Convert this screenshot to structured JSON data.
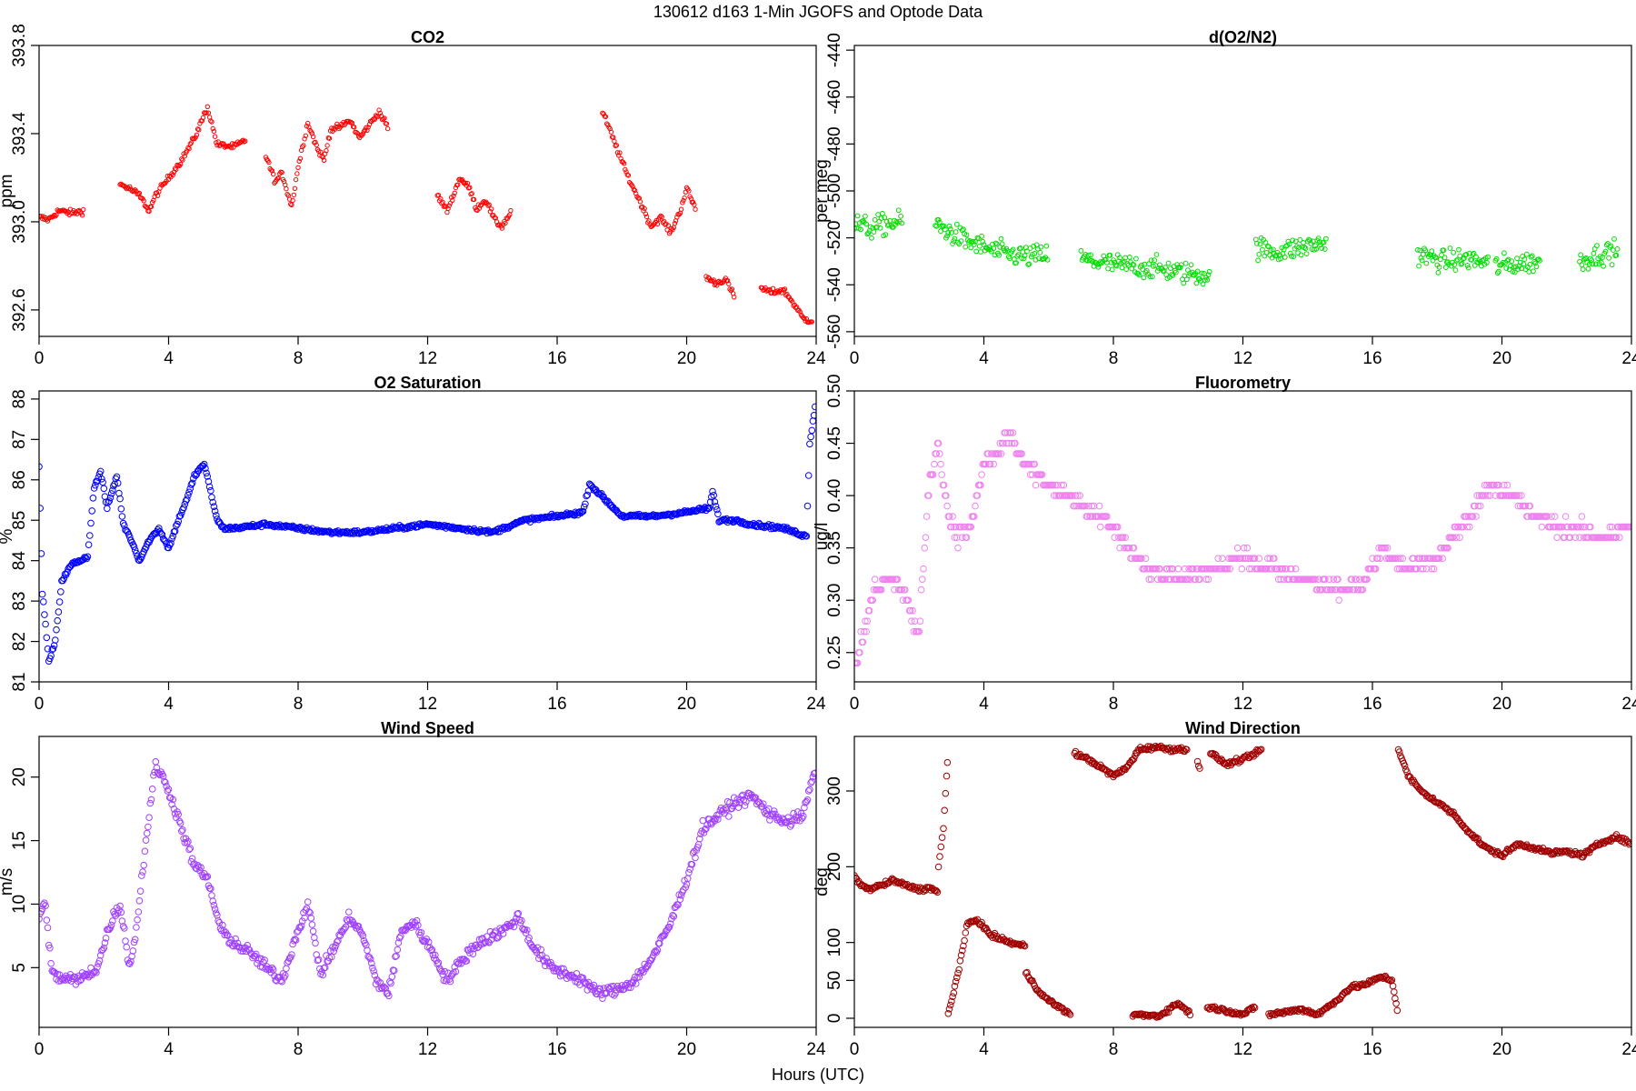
{
  "figure": {
    "suptitle": "130612   d163   1-Min  JGOFS and Optode Data",
    "xlabel": "Hours (UTC)"
  },
  "chart_data": [
    {
      "id": "co2",
      "type": "scatter",
      "title": "CO2",
      "ylabel": "ppm",
      "color": "#ff0000",
      "xlim": [
        0,
        24
      ],
      "ylim": [
        392.48,
        393.8
      ],
      "xticks": [
        0,
        4,
        8,
        12,
        16,
        20,
        24
      ],
      "yticks": [
        392.6,
        393.0,
        393.4,
        393.8
      ],
      "ytick_labels": [
        "392.6",
        "393.0",
        "393.4",
        "393.8"
      ],
      "ytick_rotate": true,
      "marker_size": 2.2,
      "noise": 0.015,
      "segments": [
        {
          "x": [
            0.0,
            0.3,
            0.6,
            1.0,
            1.4
          ],
          "y": [
            393.02,
            393.01,
            393.05,
            393.04,
            393.05
          ]
        },
        {
          "x": [
            2.5,
            2.8,
            3.1,
            3.4,
            3.6,
            4.0,
            4.4,
            4.8,
            5.0,
            5.2,
            5.5,
            6.0,
            6.4
          ],
          "y": [
            393.17,
            393.15,
            393.12,
            393.05,
            393.12,
            393.2,
            393.28,
            393.38,
            393.45,
            393.52,
            393.35,
            393.34,
            393.37
          ]
        },
        {
          "x": [
            7.0,
            7.3,
            7.5,
            7.8,
            8.0,
            8.3,
            8.6,
            8.8,
            9.0,
            9.3,
            9.6,
            9.9,
            10.1,
            10.5,
            10.8
          ],
          "y": [
            393.3,
            393.18,
            393.22,
            393.07,
            393.25,
            393.45,
            393.33,
            393.28,
            393.42,
            393.43,
            393.46,
            393.38,
            393.42,
            393.5,
            393.42
          ]
        },
        {
          "x": [
            12.3,
            12.6,
            13.0,
            13.3,
            13.5,
            13.8,
            14.1,
            14.3,
            14.6
          ],
          "y": [
            393.12,
            393.05,
            393.2,
            393.15,
            393.06,
            393.1,
            393.0,
            392.98,
            393.05
          ]
        },
        {
          "x": [
            17.4,
            17.8,
            18.2,
            18.6,
            18.9,
            19.2,
            19.5,
            19.8,
            20.0,
            20.3
          ],
          "y": [
            393.5,
            393.35,
            393.2,
            393.08,
            392.98,
            393.02,
            392.95,
            393.05,
            393.15,
            393.05
          ]
        },
        {
          "x": [
            20.6,
            20.9,
            21.2,
            21.5
          ],
          "y": [
            392.75,
            392.72,
            392.74,
            392.65
          ]
        },
        {
          "x": [
            22.3,
            22.6,
            23.0,
            23.3,
            23.6,
            23.9
          ],
          "y": [
            392.7,
            392.68,
            392.69,
            392.63,
            392.56,
            392.55
          ]
        }
      ]
    },
    {
      "id": "o2n2",
      "type": "scatter",
      "title": "d(O2/N2)",
      "ylabel": "per meg",
      "color": "#00dd00",
      "xlim": [
        0,
        24
      ],
      "ylim": [
        -562,
        -438
      ],
      "xticks": [
        0,
        4,
        8,
        12,
        16,
        20,
        24
      ],
      "yticks": [
        -560,
        -540,
        -520,
        -500,
        -480,
        -460,
        -440
      ],
      "ytick_labels": [
        "-560",
        "-540",
        "-520",
        "-500",
        "-480",
        "-460",
        "-440"
      ],
      "ytick_rotate": true,
      "marker_size": 2.4,
      "noise": 5,
      "segments": [
        {
          "x": [
            0.0,
            0.5,
            1.0,
            1.5
          ],
          "y": [
            -514,
            -516,
            -514,
            -513
          ]
        },
        {
          "x": [
            2.5,
            3.0,
            3.6,
            4.2,
            4.8,
            5.4,
            6.0
          ],
          "y": [
            -514,
            -518,
            -522,
            -525,
            -527,
            -528,
            -527
          ]
        },
        {
          "x": [
            7.0,
            7.8,
            8.6,
            9.4,
            10.2,
            11.0
          ],
          "y": [
            -529,
            -531,
            -532,
            -533,
            -535,
            -536
          ]
        },
        {
          "x": [
            12.4,
            13.0,
            13.8,
            14.6
          ],
          "y": [
            -524,
            -526,
            -524,
            -522
          ]
        },
        {
          "x": [
            17.4,
            18.2,
            19.0,
            19.6
          ],
          "y": [
            -527,
            -530,
            -529,
            -531
          ]
        },
        {
          "x": [
            19.8,
            20.5,
            21.2
          ],
          "y": [
            -532,
            -531,
            -530
          ]
        },
        {
          "x": [
            22.4,
            23.0,
            23.6
          ],
          "y": [
            -530,
            -527,
            -525
          ]
        }
      ]
    },
    {
      "id": "o2sat",
      "type": "scatter",
      "title": "O2 Saturation",
      "ylabel": "%",
      "color": "#0000ff",
      "xlim": [
        0,
        24
      ],
      "ylim": [
        81.0,
        88.2
      ],
      "xticks": [
        0,
        4,
        8,
        12,
        16,
        20,
        24
      ],
      "yticks": [
        81,
        82,
        83,
        84,
        85,
        86,
        87,
        88
      ],
      "ytick_labels": [
        "81",
        "82",
        "83",
        "84",
        "85",
        "86",
        "87",
        "88"
      ],
      "ytick_rotate": true,
      "marker_size": 3.3,
      "noise": 0.05,
      "segments": [
        {
          "x": [
            0.0,
            0.1,
            0.2,
            0.3,
            0.5,
            0.7,
            1.0,
            1.5,
            1.7,
            1.9,
            2.1,
            2.4,
            2.6,
            2.8,
            3.1,
            3.4,
            3.7,
            4.0,
            4.3,
            4.6,
            4.8,
            5.1,
            5.5,
            5.7,
            6.0,
            7.0,
            8.0,
            9.0,
            10.0,
            11.0,
            12.0,
            13.0,
            14.0,
            15.0,
            16.0,
            16.8,
            17.0,
            18.0,
            19.0,
            20.0,
            20.7,
            20.8,
            21.0,
            21.5,
            22.0,
            23.0,
            23.7,
            23.8,
            24.0
          ],
          "y": [
            86.3,
            83.2,
            82.4,
            81.5,
            82.0,
            83.5,
            83.9,
            84.1,
            85.8,
            86.2,
            85.3,
            86.1,
            84.9,
            84.6,
            84.0,
            84.5,
            84.8,
            84.3,
            85.0,
            85.6,
            86.1,
            86.4,
            85.0,
            84.8,
            84.8,
            84.9,
            84.8,
            84.7,
            84.7,
            84.8,
            84.9,
            84.8,
            84.7,
            85.0,
            85.1,
            85.2,
            85.9,
            85.1,
            85.1,
            85.2,
            85.3,
            85.7,
            85.0,
            85.0,
            84.9,
            84.8,
            84.6,
            86.9,
            88.0
          ]
        }
      ]
    },
    {
      "id": "fluor",
      "type": "scatter",
      "title": "Fluorometry",
      "ylabel": "ug/l",
      "color": "#ee82ee",
      "xlim": [
        0,
        24
      ],
      "ylim": [
        0.222,
        0.5
      ],
      "xticks": [
        0,
        4,
        8,
        12,
        16,
        20,
        24
      ],
      "yticks": [
        0.25,
        0.3,
        0.35,
        0.4,
        0.45,
        0.5
      ],
      "ytick_labels": [
        "0.25",
        "0.30",
        "0.35",
        "0.40",
        "0.45",
        "0.50"
      ],
      "ytick_rotate": true,
      "marker_size": 3.3,
      "noise": 0.008,
      "quantize": 0.01,
      "segments": [
        {
          "x": [
            0.0,
            0.3,
            0.6,
            1.0,
            1.5,
            1.8,
            2.0,
            2.3,
            2.6,
            2.9,
            3.2,
            3.6,
            4.0,
            4.4,
            4.8,
            5.2,
            6.0,
            7.0,
            8.0,
            9.0,
            10.0,
            11.0,
            12.0,
            13.0,
            14.0,
            15.0,
            15.8,
            16.3,
            17.0,
            18.0,
            19.0,
            19.6,
            20.3,
            21.0,
            22.0,
            23.0,
            24.0
          ],
          "y": [
            0.24,
            0.27,
            0.31,
            0.32,
            0.31,
            0.28,
            0.27,
            0.41,
            0.45,
            0.38,
            0.36,
            0.37,
            0.43,
            0.44,
            0.46,
            0.43,
            0.41,
            0.39,
            0.37,
            0.33,
            0.32,
            0.33,
            0.34,
            0.33,
            0.32,
            0.31,
            0.32,
            0.35,
            0.33,
            0.34,
            0.38,
            0.41,
            0.4,
            0.38,
            0.37,
            0.36,
            0.37
          ]
        }
      ]
    },
    {
      "id": "wspd",
      "type": "scatter",
      "title": "Wind Speed",
      "ylabel": "m/s",
      "color": "#a040ff",
      "xlim": [
        0,
        24
      ],
      "ylim": [
        0.3,
        23.2
      ],
      "xticks": [
        0,
        4,
        8,
        12,
        16,
        20,
        24
      ],
      "yticks": [
        5,
        10,
        15,
        20
      ],
      "ytick_labels": [
        "5",
        "10",
        "15",
        "20"
      ],
      "ytick_rotate": true,
      "marker_size": 3.3,
      "noise": 0.5,
      "segments": [
        {
          "x": [
            0.0,
            0.2,
            0.4,
            0.6,
            1.2,
            1.8,
            2.2,
            2.5,
            2.8,
            3.0,
            3.3,
            3.6,
            4.0,
            4.4,
            4.8,
            5.2,
            5.6,
            6.0,
            6.6,
            7.0,
            7.5,
            8.0,
            8.3,
            8.7,
            9.2,
            9.6,
            10.0,
            10.4,
            10.8,
            11.2,
            11.6,
            12.2,
            12.6,
            13.2,
            13.6,
            14.0,
            14.4,
            14.8,
            15.3,
            15.8,
            16.3,
            16.8,
            17.2,
            17.8,
            18.4,
            19.0,
            19.5,
            20.0,
            20.5,
            21.0,
            21.5,
            22.0,
            22.6,
            23.2,
            23.6,
            24.0
          ],
          "y": [
            9.0,
            10.0,
            4.5,
            4.2,
            4.0,
            5.0,
            8.5,
            10.0,
            5.0,
            8.0,
            15.0,
            21.0,
            19.0,
            16.0,
            13.0,
            12.0,
            8.0,
            7.0,
            6.0,
            5.0,
            4.0,
            8.0,
            10.0,
            4.5,
            7.0,
            9.0,
            7.5,
            4.0,
            3.0,
            8.0,
            8.5,
            6.0,
            4.0,
            6.0,
            7.0,
            7.5,
            8.0,
            9.0,
            6.5,
            5.0,
            4.5,
            4.0,
            3.0,
            3.2,
            4.0,
            6.0,
            8.5,
            12.0,
            16.0,
            17.0,
            18.0,
            18.5,
            17.0,
            16.5,
            17.0,
            21.0
          ]
        }
      ]
    },
    {
      "id": "wdir",
      "type": "scatter",
      "title": "Wind Direction",
      "ylabel": "deg",
      "color": "#a00000",
      "xlim": [
        0,
        24
      ],
      "ylim": [
        -12,
        372
      ],
      "xticks": [
        0,
        4,
        8,
        12,
        16,
        20,
        24
      ],
      "yticks": [
        0,
        50,
        100,
        200,
        300
      ],
      "ytick_labels": [
        "0",
        "50",
        "100",
        "200",
        "300"
      ],
      "ytick_rotate": true,
      "marker_size": 3.3,
      "noise": 3,
      "segments": [
        {
          "x": [
            0.0,
            0.4,
            0.8,
            1.2,
            1.6,
            2.0,
            2.4,
            2.6
          ],
          "y": [
            185,
            170,
            175,
            182,
            175,
            170,
            172,
            165
          ]
        },
        {
          "x": [
            2.6,
            2.75,
            2.85,
            2.9
          ],
          "y": [
            200,
            250,
            320,
            355
          ]
        },
        {
          "x": [
            2.9,
            3.2,
            3.5,
            3.8,
            4.2,
            4.8,
            5.3
          ],
          "y": [
            5,
            60,
            125,
            130,
            110,
            100,
            95
          ]
        },
        {
          "x": [
            5.3,
            5.8,
            6.3,
            6.7
          ],
          "y": [
            60,
            30,
            15,
            5
          ]
        },
        {
          "x": [
            6.8,
            7.3,
            8.0,
            8.4,
            8.8,
            9.3,
            9.8,
            10.3
          ],
          "y": [
            350,
            340,
            320,
            330,
            355,
            358,
            355,
            355
          ]
        },
        {
          "x": [
            10.6,
            10.7
          ],
          "y": [
            340,
            325
          ]
        },
        {
          "x": [
            11.0,
            11.5,
            12.2,
            12.6
          ],
          "y": [
            350,
            335,
            345,
            355
          ]
        },
        {
          "x": [
            8.6,
            9.4,
            10.0,
            10.4
          ],
          "y": [
            5,
            3,
            20,
            5
          ]
        },
        {
          "x": [
            10.9,
            11.5,
            12.0,
            12.4
          ],
          "y": [
            15,
            10,
            5,
            15
          ]
        },
        {
          "x": [
            12.8,
            13.3,
            13.8,
            14.3,
            14.8,
            15.3,
            15.8,
            16.3,
            16.6,
            16.8
          ],
          "y": [
            5,
            8,
            12,
            5,
            20,
            40,
            45,
            55,
            50,
            5
          ]
        },
        {
          "x": [
            16.8,
            17.1,
            17.5,
            18.0,
            18.5,
            19.0,
            19.5,
            20.0,
            20.5,
            21.0,
            21.5,
            22.0,
            22.5,
            23.0,
            23.5,
            24.0
          ],
          "y": [
            355,
            320,
            300,
            285,
            270,
            245,
            225,
            215,
            230,
            225,
            218,
            220,
            215,
            230,
            240,
            230
          ]
        }
      ]
    }
  ]
}
